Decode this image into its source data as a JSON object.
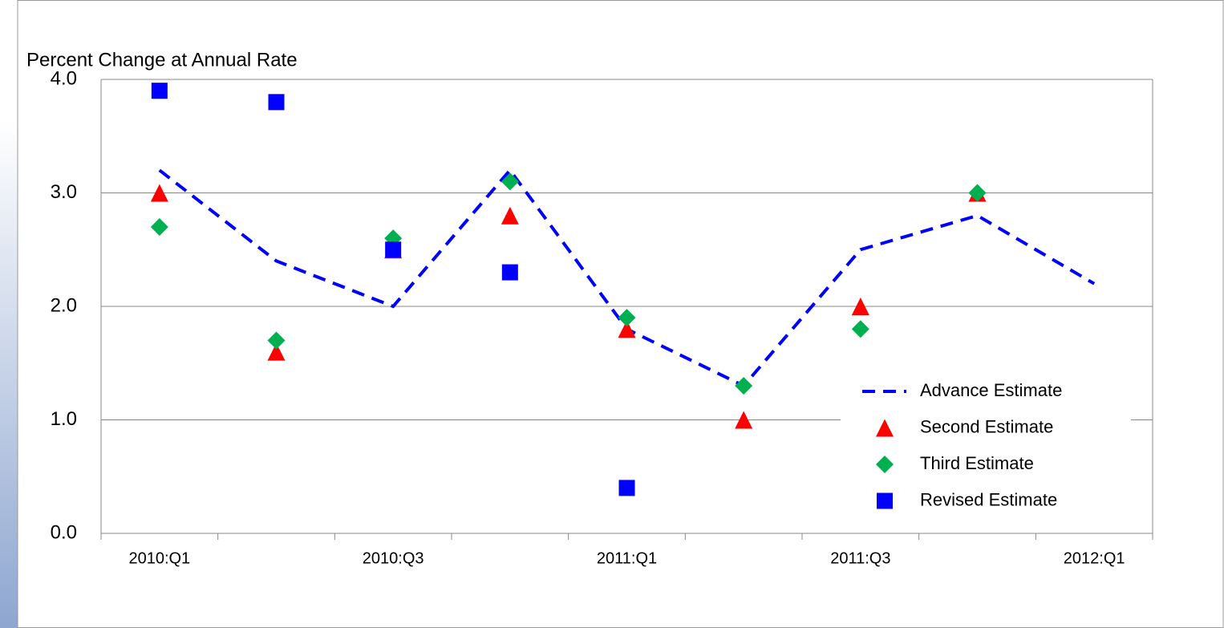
{
  "chart_data": {
    "type": "line",
    "ylabel": "Percent Change at Annual Rate",
    "categories": [
      "2010:Q1",
      null,
      "2010:Q3",
      null,
      "2011:Q1",
      null,
      "2011:Q3",
      null,
      "2012:Q1"
    ],
    "series": [
      {
        "name": "Advance Estimate",
        "color": "#0000ff",
        "style": "dashed",
        "values": [
          3.2,
          2.4,
          2.0,
          3.2,
          1.8,
          1.3,
          2.5,
          2.8,
          2.2
        ]
      },
      {
        "name": "Second Estimate",
        "color": "#ff0000",
        "marker": "triangle",
        "values": [
          3.0,
          1.6,
          2.5,
          2.8,
          1.8,
          1.0,
          2.0,
          3.0,
          null
        ]
      },
      {
        "name": "Third Estimate",
        "color": "#00b050",
        "marker": "diamond",
        "values": [
          2.7,
          1.7,
          2.6,
          3.1,
          1.9,
          1.3,
          1.8,
          3.0,
          null
        ]
      },
      {
        "name": "Revised Estimate",
        "color": "#0000ff",
        "marker": "square",
        "values": [
          3.9,
          3.8,
          2.5,
          2.3,
          0.4,
          null,
          null,
          null,
          null
        ]
      }
    ],
    "ylim": [
      0,
      4
    ],
    "yticks": [
      {
        "value": 0,
        "label": "0.0"
      },
      {
        "value": 1,
        "label": "1.0"
      },
      {
        "value": 2,
        "label": "2.0"
      },
      {
        "value": 3,
        "label": "3.0"
      },
      {
        "value": 4,
        "label": "4.0"
      }
    ],
    "grid": true,
    "legend": "lower right"
  }
}
